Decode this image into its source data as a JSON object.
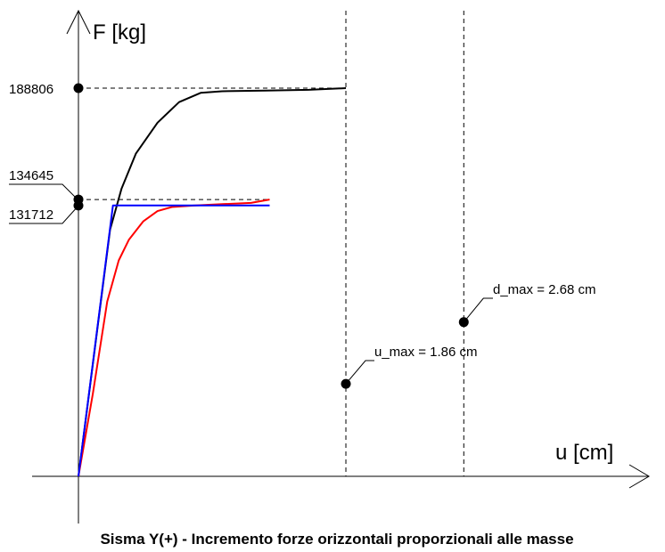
{
  "chart_data": {
    "type": "line",
    "title": "Sisma Y(+) - Incremento forze orizzontali proporzionali alle masse",
    "xlabel": "u [cm]",
    "ylabel": "F [kg]",
    "xlim": [
      0,
      4.9
    ],
    "ylim": [
      0,
      233000
    ],
    "grid": false,
    "series": [
      {
        "color": "#000000",
        "points": [
          [
            0.0,
            0
          ],
          [
            0.22,
            120000
          ],
          [
            0.3,
            140000
          ],
          [
            0.4,
            157000
          ],
          [
            0.55,
            172000
          ],
          [
            0.7,
            182000
          ],
          [
            0.85,
            186500
          ],
          [
            1.0,
            187300
          ],
          [
            1.3,
            187600
          ],
          [
            1.6,
            188000
          ],
          [
            1.86,
            188806
          ]
        ]
      },
      {
        "color": "#ff0000",
        "points": [
          [
            0.0,
            0
          ],
          [
            0.1,
            40000
          ],
          [
            0.2,
            85000
          ],
          [
            0.28,
            105000
          ],
          [
            0.35,
            115000
          ],
          [
            0.45,
            124000
          ],
          [
            0.55,
            129000
          ],
          [
            0.65,
            131000
          ],
          [
            0.8,
            131700
          ],
          [
            1.0,
            132400
          ],
          [
            1.2,
            133000
          ],
          [
            1.33,
            134645
          ]
        ]
      },
      {
        "color": "#0000ff",
        "points": [
          [
            0.0,
            0
          ],
          [
            0.24,
            131712
          ],
          [
            1.33,
            131712
          ]
        ]
      }
    ],
    "y_ticks": [
      188806,
      134645,
      131712
    ],
    "y_tick_labels": [
      "188806",
      "134645",
      "131712"
    ],
    "vlines": [
      1.86,
      2.68
    ],
    "annotations": [
      {
        "text": "u_max = 1.86 cm",
        "x": 1.86,
        "y": 45000
      },
      {
        "text": "d_max = 2.68 cm",
        "x": 2.68,
        "y": 75000
      }
    ]
  },
  "colors": {
    "capacity_curve": "#000000",
    "equivalent_curve": "#ff0000",
    "bilinear": "#0000ff",
    "axes": "#000000"
  }
}
